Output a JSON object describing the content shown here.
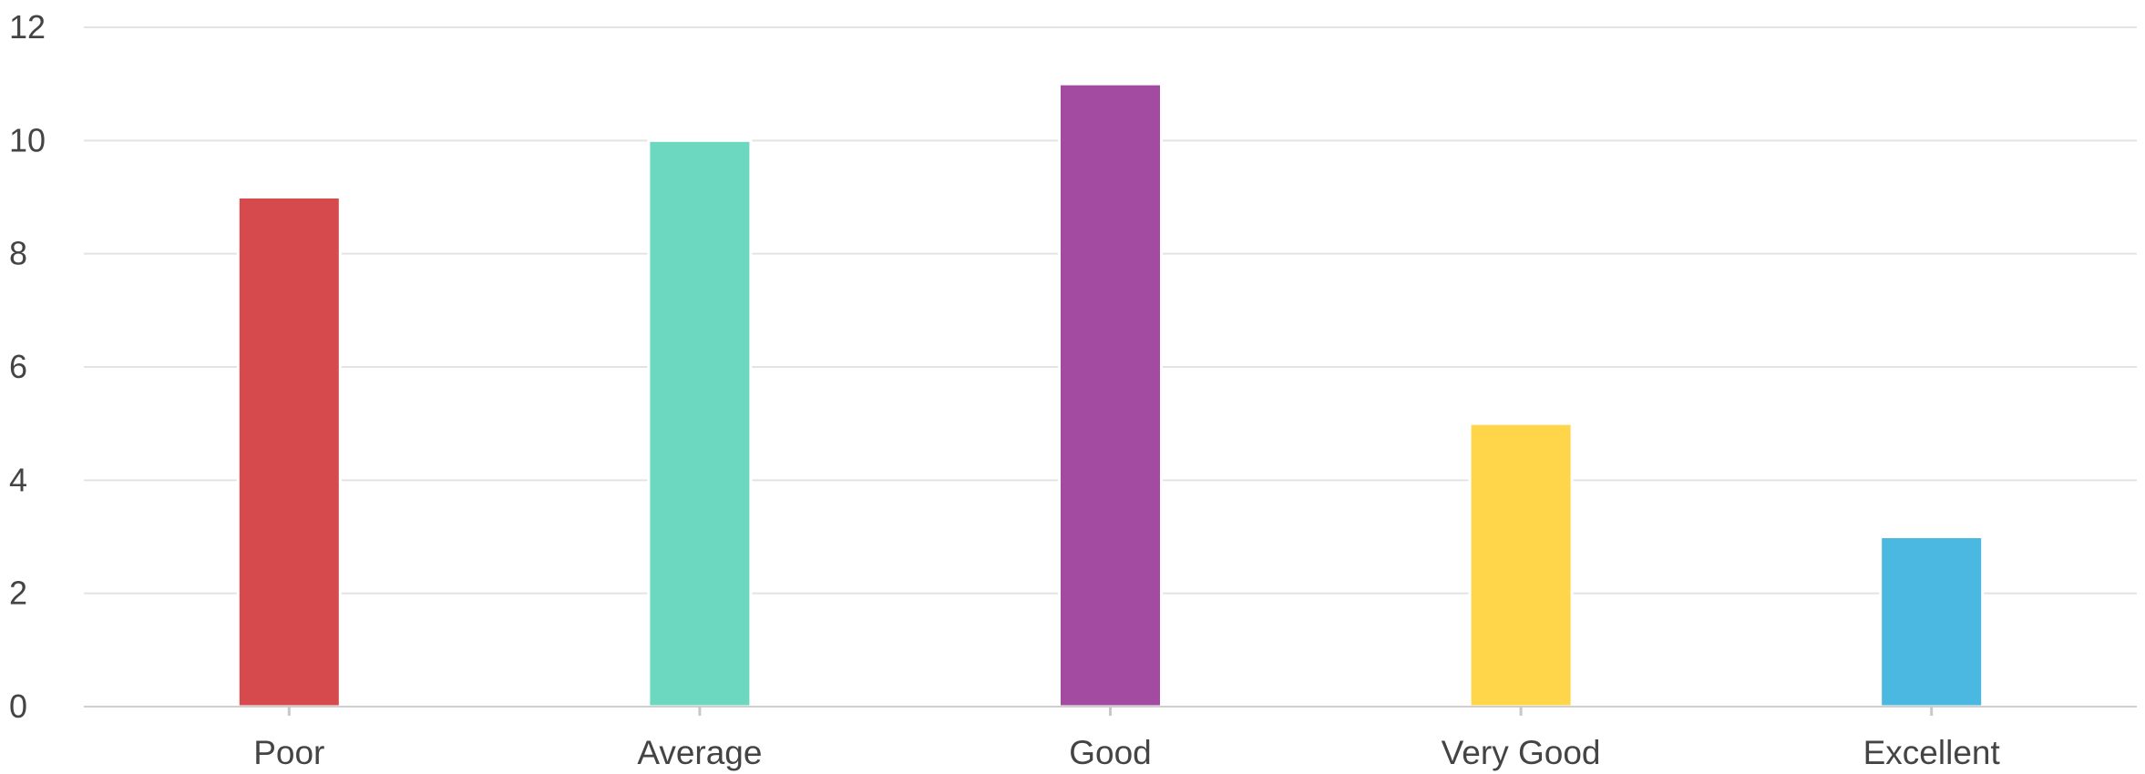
{
  "chart_data": {
    "type": "bar",
    "title": "",
    "xlabel": "",
    "ylabel": "",
    "categories": [
      "Poor",
      "Average",
      "Good",
      "Very Good",
      "Excellent"
    ],
    "values": [
      9,
      10,
      11,
      5,
      3
    ],
    "colors": [
      "#d6494d",
      "#6cd8c0",
      "#a34aa1",
      "#ffd54a",
      "#4ab8e0"
    ],
    "ylim": [
      0,
      12
    ],
    "yticks": [
      "0",
      "2",
      "4",
      "6",
      "8",
      "10",
      "12"
    ],
    "grid": true,
    "legend": "none"
  }
}
